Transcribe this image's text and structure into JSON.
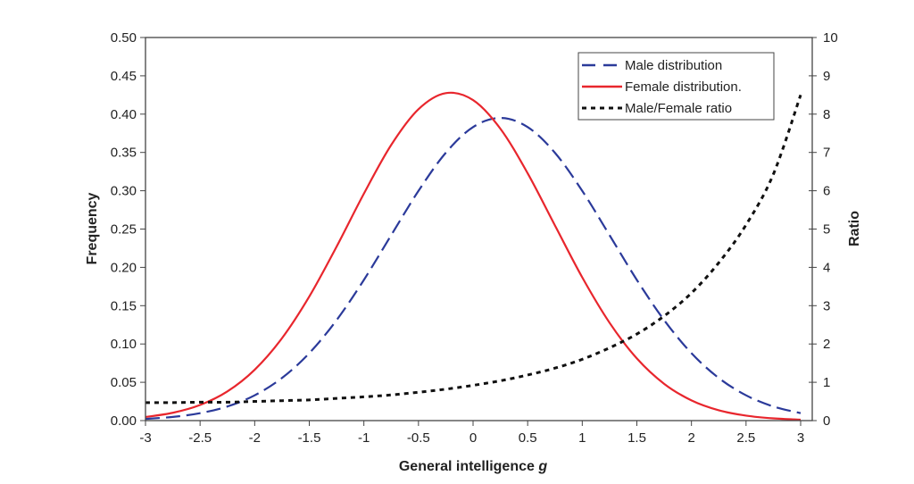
{
  "chart_data": {
    "type": "line",
    "xlabel": "General intelligence",
    "xlabel_italic": "g",
    "ylabel": "Frequency",
    "y2label": "Ratio",
    "xlim": [
      -3,
      3
    ],
    "ylim": [
      0,
      0.5
    ],
    "y2lim": [
      0,
      10
    ],
    "grid": false,
    "legend_placement": "top-right",
    "x_ticks": [
      "-3",
      "-2.5",
      "-2",
      "-1.5",
      "-1",
      "-0.5",
      "0",
      "0.5",
      "1",
      "1.5",
      "2",
      "2.5",
      "3"
    ],
    "y_ticks": [
      "0.00",
      "0.05",
      "0.10",
      "0.15",
      "0.20",
      "0.25",
      "0.30",
      "0.35",
      "0.40",
      "0.45",
      "0.50"
    ],
    "y2_ticks": [
      "0",
      "1",
      "2",
      "3",
      "4",
      "5",
      "6",
      "7",
      "8",
      "9",
      "10"
    ],
    "x": [
      -3,
      -2.75,
      -2.5,
      -2.25,
      -2,
      -1.75,
      -1.5,
      -1.25,
      -1,
      -0.75,
      -0.5,
      -0.25,
      0,
      0.25,
      0.5,
      0.75,
      1,
      1.25,
      1.5,
      1.75,
      2,
      2.25,
      2.5,
      2.75,
      3
    ],
    "series": [
      {
        "name": "Male distribution",
        "axis": "left",
        "style": "dashed",
        "color": "#2b3a9a",
        "values": [
          0.0022,
          0.0048,
          0.0097,
          0.0184,
          0.033,
          0.0556,
          0.088,
          0.1311,
          0.1836,
          0.242,
          0.2998,
          0.3495,
          0.3831,
          0.395,
          0.3831,
          0.3495,
          0.2998,
          0.242,
          0.1836,
          0.1311,
          0.088,
          0.0556,
          0.033,
          0.0184,
          0.0097
        ]
      },
      {
        "name": "Female distribution.",
        "axis": "left",
        "style": "solid",
        "color": "#e8262d",
        "values": [
          0.0047,
          0.0102,
          0.0204,
          0.0381,
          0.0664,
          0.1075,
          0.1619,
          0.227,
          0.2962,
          0.3597,
          0.4064,
          0.4274,
          0.4183,
          0.381,
          0.3228,
          0.2547,
          0.1869,
          0.1277,
          0.0811,
          0.048,
          0.0264,
          0.0135,
          0.0065,
          0.0029,
          0.0012
        ]
      },
      {
        "name": "Male/Female ratio",
        "axis": "right",
        "style": "dotted",
        "color": "#111111",
        "values": [
          0.47,
          0.47,
          0.48,
          0.48,
          0.5,
          0.52,
          0.54,
          0.58,
          0.62,
          0.67,
          0.74,
          0.82,
          0.92,
          1.04,
          1.19,
          1.37,
          1.6,
          1.9,
          2.26,
          2.73,
          3.33,
          4.12,
          5.11,
          6.43,
          8.5
        ]
      }
    ]
  }
}
